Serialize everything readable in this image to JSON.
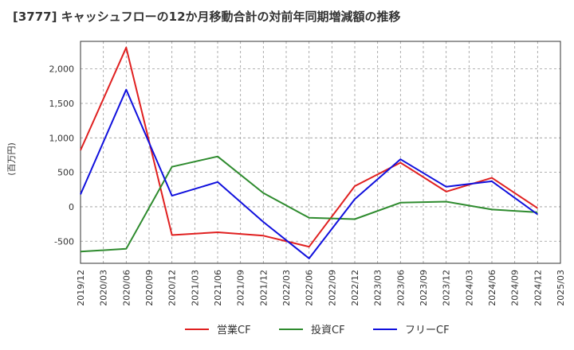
{
  "chart_data": {
    "type": "line",
    "title": "[3777]  キャッシュフローの12か月移動合計の対前年同期増減額の推移",
    "xlabel": "",
    "ylabel": "(百万円)",
    "ylim": [
      -820,
      2400
    ],
    "yticks": [
      -500,
      0,
      500,
      1000,
      1500,
      2000
    ],
    "ytick_labels": [
      "-500",
      "0",
      "500",
      "1,000",
      "1,500",
      "2,000"
    ],
    "x": [
      "2019/12",
      "2020/03",
      "2020/06",
      "2020/09",
      "2020/12",
      "2021/03",
      "2021/06",
      "2021/09",
      "2021/12",
      "2022/03",
      "2022/06",
      "2022/09",
      "2022/12",
      "2023/03",
      "2023/06",
      "2023/09",
      "2023/12",
      "2024/03",
      "2024/06",
      "2024/09",
      "2024/12",
      "2025/03"
    ],
    "grid": true,
    "legend_position": "bottom",
    "series": [
      {
        "name": "営業CF",
        "color": "#e02020",
        "values": [
          820,
          null,
          2310,
          null,
          -410,
          null,
          -370,
          null,
          -420,
          null,
          -580,
          null,
          300,
          null,
          640,
          null,
          220,
          null,
          420,
          null,
          -20,
          null
        ]
      },
      {
        "name": "投資CF",
        "color": "#2e8b2e",
        "values": [
          -650,
          null,
          -610,
          null,
          580,
          null,
          730,
          null,
          200,
          null,
          -160,
          null,
          -180,
          null,
          60,
          null,
          75,
          null,
          -40,
          null,
          -80,
          null
        ]
      },
      {
        "name": "フリーCF",
        "color": "#1010dd",
        "values": [
          180,
          null,
          1700,
          null,
          160,
          null,
          360,
          null,
          -220,
          null,
          -750,
          null,
          110,
          null,
          690,
          null,
          290,
          null,
          370,
          null,
          -110,
          null
        ]
      }
    ]
  }
}
